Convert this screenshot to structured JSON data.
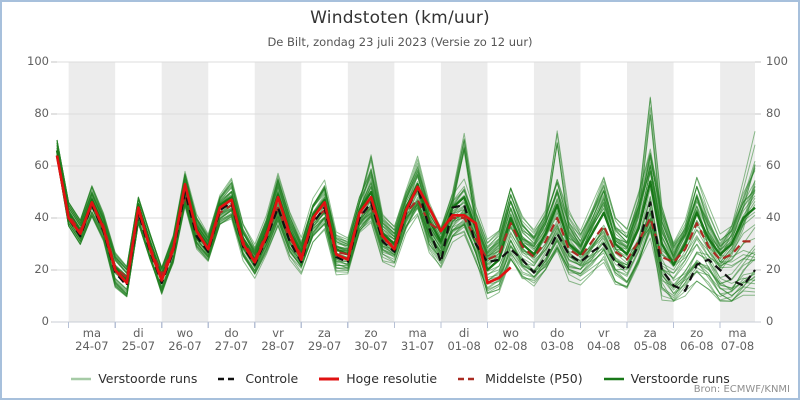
{
  "header": {
    "title": "Windstoten (km/uur)",
    "subtitle": "De Bilt, zondag 23 juli 2023 (Versie zo 12 uur)"
  },
  "source": {
    "credit": "Bron: ECMWF/KNMI"
  },
  "colors": {
    "band": "#ececec",
    "grid": "#dcdcdc",
    "axis_line": "#c9ced6",
    "x_tick": "#b7c1d6",
    "y_tick": "#c4c4c4",
    "member": "rgba(34,128,34,0.5)",
    "member_legend": "#a6cba6",
    "highlight_member": "#187818",
    "control": "#111111",
    "hres": "#e01212",
    "p50": "#aa2c22"
  },
  "legend": {
    "items": [
      {
        "label": "Verstoorde runs",
        "color": "#a6cba6",
        "dash": false,
        "width": 2.5
      },
      {
        "label": "Controle",
        "color": "#111111",
        "dash": true,
        "width": 2.5
      },
      {
        "label": "Hoge resolutie",
        "color": "#e01212",
        "dash": false,
        "width": 3
      },
      {
        "label": "Middelste (P50)",
        "color": "#aa2c22",
        "dash": true,
        "width": 2.5
      },
      {
        "label": "Verstoorde runs",
        "color": "#187818",
        "dash": false,
        "width": 2.5
      }
    ]
  },
  "chart_data": {
    "type": "line",
    "title": "Windstoten (km/uur)",
    "ylabel": "km/uur",
    "ylim": [
      0,
      100
    ],
    "yticks": [
      0,
      20,
      40,
      60,
      80,
      100
    ],
    "points_per_day": 4,
    "grid": true,
    "legend_position": "bottom",
    "days": [
      {
        "dow": "ma",
        "date": "24-07"
      },
      {
        "dow": "di",
        "date": "25-07"
      },
      {
        "dow": "wo",
        "date": "26-07"
      },
      {
        "dow": "do",
        "date": "27-07"
      },
      {
        "dow": "vr",
        "date": "28-07"
      },
      {
        "dow": "za",
        "date": "29-07"
      },
      {
        "dow": "zo",
        "date": "30-07"
      },
      {
        "dow": "ma",
        "date": "31-07"
      },
      {
        "dow": "di",
        "date": "01-08"
      },
      {
        "dow": "wo",
        "date": "02-08"
      },
      {
        "dow": "do",
        "date": "03-08"
      },
      {
        "dow": "vr",
        "date": "04-08"
      },
      {
        "dow": "za",
        "date": "05-08"
      },
      {
        "dow": "zo",
        "date": "06-08"
      },
      {
        "dow": "ma",
        "date": "07-08"
      }
    ],
    "series": [
      {
        "name": "Hoge resolutie",
        "style": "hres",
        "values": [
          64,
          40,
          34,
          46,
          36,
          20,
          15,
          44,
          28,
          16,
          28,
          53,
          35,
          28,
          44,
          47,
          30,
          23,
          33,
          48,
          34,
          24,
          40,
          46,
          26,
          24,
          42,
          48,
          33,
          28,
          43,
          52,
          44,
          35,
          41,
          41,
          38,
          15,
          17,
          21
        ]
      },
      {
        "name": "Controle",
        "style": "control",
        "values": [
          64,
          40,
          33,
          45,
          35,
          19,
          14,
          42,
          27,
          15,
          27,
          50,
          33,
          27,
          43,
          46,
          29,
          22,
          32,
          44,
          31,
          23,
          38,
          44,
          25,
          23,
          40,
          46,
          31,
          27,
          42,
          52,
          36,
          23,
          44,
          45,
          30,
          23,
          24,
          28,
          24,
          19,
          25,
          34,
          26,
          23,
          27,
          30,
          23,
          20,
          30,
          46,
          20,
          14,
          12,
          22,
          24,
          20,
          16,
          14,
          20
        ]
      },
      {
        "name": "Middelste (P50)",
        "style": "p50",
        "values": [
          64,
          41,
          35,
          45,
          37,
          21,
          17,
          43,
          29,
          18,
          29,
          49,
          34,
          28,
          42,
          45,
          31,
          24,
          34,
          44,
          32,
          26,
          39,
          43,
          27,
          26,
          41,
          45,
          32,
          29,
          42,
          47,
          38,
          35,
          40,
          40,
          32,
          24,
          26,
          38,
          29,
          25,
          31,
          40,
          28,
          25,
          31,
          37,
          27,
          24,
          31,
          40,
          25,
          23,
          28,
          38,
          29,
          24,
          26,
          31,
          31
        ]
      },
      {
        "name": "Verstoorde runs",
        "style": "highlight_member",
        "values": [
          66,
          42,
          35,
          47,
          37,
          21,
          16,
          45,
          30,
          17,
          29,
          51,
          36,
          29,
          45,
          48,
          32,
          24,
          35,
          49,
          35,
          26,
          41,
          47,
          28,
          26,
          43,
          50,
          34,
          30,
          44,
          53,
          39,
          31,
          44,
          48,
          36,
          20,
          24,
          40,
          30,
          26,
          34,
          45,
          30,
          26,
          34,
          42,
          30,
          26,
          36,
          54,
          30,
          22,
          30,
          42,
          32,
          26,
          30,
          40,
          44
        ]
      }
    ],
    "ensemble": {
      "name": "Verstoorde runs",
      "count": 48,
      "seed": 20230723,
      "base_members": [
        [
          67,
          44,
          37,
          49,
          39,
          24,
          19,
          46,
          32,
          19,
          31,
          54,
          38,
          31,
          46,
          50,
          34,
          26,
          37,
          52,
          38,
          28,
          43,
          49,
          30,
          28,
          44,
          55,
          36,
          32,
          46,
          56,
          41,
          33,
          46,
          52,
          38,
          26,
          30,
          46,
          34,
          30,
          38,
          52,
          36,
          30,
          40,
          50,
          34,
          30,
          44,
          82,
          38,
          26,
          34,
          48,
          36,
          28,
          34,
          44,
          52
        ],
        [
          63,
          38,
          31,
          42,
          33,
          16,
          12,
          39,
          25,
          13,
          24,
          46,
          30,
          25,
          39,
          42,
          27,
          20,
          29,
          40,
          28,
          22,
          34,
          39,
          22,
          21,
          36,
          41,
          27,
          25,
          38,
          46,
          32,
          25,
          35,
          38,
          28,
          12,
          14,
          26,
          20,
          17,
          22,
          30,
          22,
          20,
          24,
          28,
          20,
          17,
          26,
          38,
          16,
          10,
          15,
          20,
          18,
          12,
          11,
          16,
          17
        ],
        [
          69,
          45,
          38,
          50,
          40,
          25,
          20,
          47,
          33,
          20,
          32,
          56,
          39,
          32,
          47,
          52,
          35,
          27,
          38,
          54,
          39,
          29,
          44,
          51,
          31,
          29,
          45,
          62,
          38,
          33,
          47,
          60,
          42,
          34,
          47,
          68,
          40,
          28,
          32,
          48,
          36,
          32,
          40,
          70,
          38,
          31,
          41,
          52,
          35,
          31,
          45,
          60,
          39,
          27,
          35,
          50,
          37,
          29,
          35,
          50,
          66
        ],
        [
          65,
          41,
          34,
          46,
          36,
          20,
          16,
          42,
          28,
          17,
          28,
          48,
          33,
          27,
          41,
          44,
          30,
          23,
          33,
          43,
          31,
          25,
          38,
          42,
          26,
          25,
          40,
          44,
          31,
          28,
          41,
          46,
          35,
          28,
          39,
          41,
          32,
          22,
          25,
          36,
          27,
          24,
          30,
          38,
          27,
          24,
          30,
          36,
          26,
          23,
          30,
          38,
          24,
          21,
          26,
          34,
          27,
          22,
          24,
          29,
          30
        ],
        [
          64,
          39,
          32,
          44,
          34,
          15,
          11,
          40,
          26,
          12,
          25,
          47,
          31,
          26,
          40,
          43,
          28,
          21,
          30,
          41,
          29,
          23,
          35,
          40,
          23,
          22,
          37,
          42,
          28,
          26,
          39,
          48,
          33,
          26,
          36,
          40,
          29,
          14,
          16,
          30,
          22,
          18,
          24,
          32,
          23,
          21,
          25,
          30,
          21,
          18,
          27,
          42,
          14,
          11,
          16,
          22,
          19,
          13,
          12,
          18,
          24
        ],
        [
          70,
          46,
          39,
          52,
          41,
          26,
          21,
          48,
          34,
          21,
          33,
          57,
          40,
          33,
          48,
          54,
          36,
          28,
          39,
          55,
          40,
          30,
          45,
          52,
          32,
          30,
          46,
          56,
          37,
          34,
          48,
          58,
          43,
          35,
          48,
          70,
          41,
          29,
          33,
          50,
          37,
          33,
          41,
          54,
          39,
          32,
          42,
          52,
          36,
          32,
          46,
          64,
          40,
          28,
          36,
          52,
          38,
          30,
          36,
          48,
          56
        ],
        [
          63,
          37,
          30,
          41,
          32,
          14,
          10,
          38,
          24,
          12,
          23,
          45,
          29,
          24,
          38,
          41,
          26,
          19,
          28,
          39,
          27,
          21,
          33,
          38,
          21,
          20,
          35,
          40,
          26,
          24,
          37,
          44,
          31,
          24,
          34,
          37,
          27,
          16,
          18,
          28,
          21,
          19,
          23,
          31,
          21,
          19,
          23,
          29,
          19,
          16,
          25,
          36,
          18,
          12,
          17,
          24,
          20,
          14,
          15,
          20,
          22
        ],
        [
          66,
          42,
          35,
          47,
          37,
          21,
          17,
          44,
          30,
          18,
          30,
          52,
          36,
          30,
          44,
          47,
          31,
          25,
          35,
          48,
          34,
          27,
          41,
          46,
          28,
          27,
          42,
          50,
          33,
          31,
          44,
          52,
          38,
          31,
          43,
          46,
          34,
          24,
          28,
          42,
          31,
          28,
          35,
          46,
          32,
          28,
          36,
          44,
          30,
          28,
          38,
          58,
          32,
          24,
          32,
          44,
          34,
          26,
          32,
          42,
          58
        ],
        [
          65,
          40,
          33,
          45,
          35,
          19,
          15,
          41,
          27,
          16,
          27,
          49,
          32,
          28,
          42,
          45,
          29,
          22,
          32,
          44,
          32,
          24,
          37,
          43,
          25,
          24,
          39,
          45,
          30,
          27,
          40,
          50,
          34,
          27,
          38,
          43,
          31,
          18,
          22,
          34,
          26,
          23,
          29,
          37,
          26,
          23,
          29,
          35,
          25,
          22,
          31,
          48,
          22,
          18,
          24,
          32,
          26,
          20,
          22,
          28,
          34
        ],
        [
          68,
          43,
          36,
          48,
          38,
          22,
          18,
          45,
          31,
          19,
          30,
          53,
          37,
          30,
          45,
          49,
          33,
          26,
          36,
          50,
          36,
          28,
          42,
          48,
          29,
          28,
          43,
          52,
          35,
          32,
          45,
          54,
          40,
          32,
          44,
          48,
          36,
          25,
          29,
          44,
          33,
          30,
          37,
          48,
          34,
          29,
          38,
          46,
          32,
          29,
          40,
          60,
          34,
          25,
          33,
          46,
          35,
          27,
          33,
          44,
          48
        ]
      ]
    }
  }
}
